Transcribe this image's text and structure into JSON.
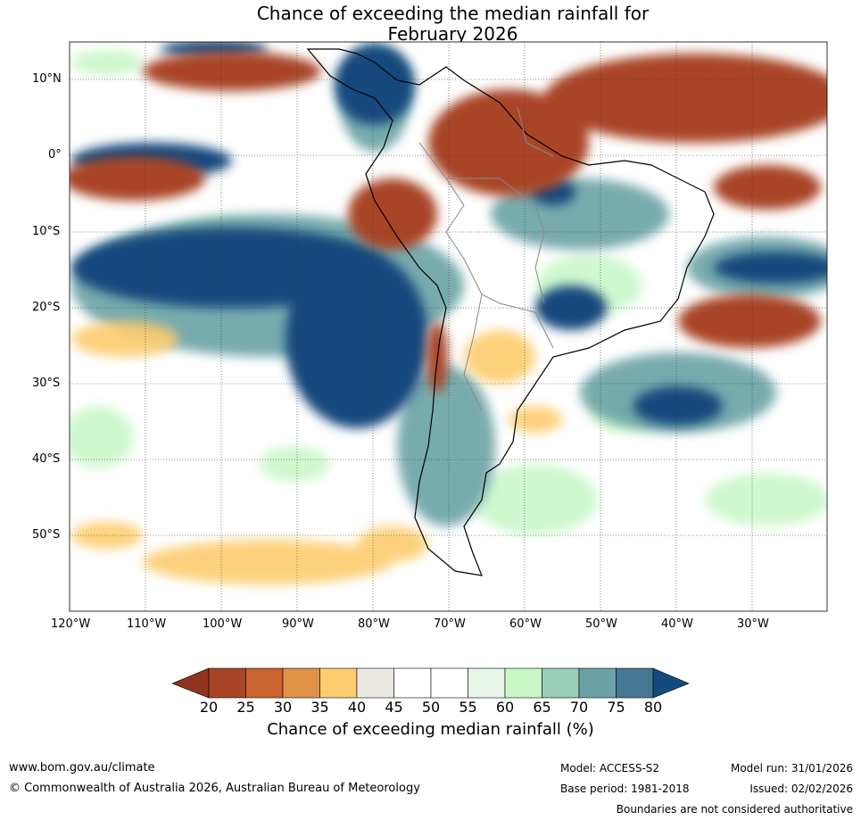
{
  "title": {
    "line1": "Chance of exceeding the median rainfall for",
    "line2": "February 2026"
  },
  "map": {
    "region": "South America",
    "lat_ticks": [
      "10°N",
      "0°",
      "10°S",
      "20°S",
      "30°S",
      "40°S",
      "50°S"
    ],
    "lon_ticks": [
      "120°W",
      "110°W",
      "100°W",
      "90°W",
      "80°W",
      "70°W",
      "60°W",
      "50°W",
      "40°W",
      "30°W"
    ],
    "grid": true
  },
  "colorbar": {
    "labels": [
      "20",
      "25",
      "30",
      "35",
      "40",
      "45",
      "50",
      "55",
      "60",
      "65",
      "70",
      "75",
      "80"
    ],
    "colors": [
      "#8f3420",
      "#a94526",
      "#c9632f",
      "#e09249",
      "#fdcc6e",
      "#ece9e4",
      "#ffffff",
      "#ffffff",
      "#e8f4e8",
      "#c7f7c7",
      "#9acdb8",
      "#6aa2a6",
      "#467894",
      "#144a7e"
    ],
    "title": "Chance of exceeding median rainfall (%)"
  },
  "footer": {
    "url": "www.bom.gov.au/climate",
    "copyright": "© Commonwealth of Australia 2026, Australian Bureau of Meteorology",
    "model": "Model: ACCESS-S2",
    "base_period": "Base period: 1981-2018",
    "model_run": "Model run: 31/01/2026",
    "issued": "Issued: 02/02/2026",
    "boundaries_note": "Boundaries are not considered authoritative"
  }
}
